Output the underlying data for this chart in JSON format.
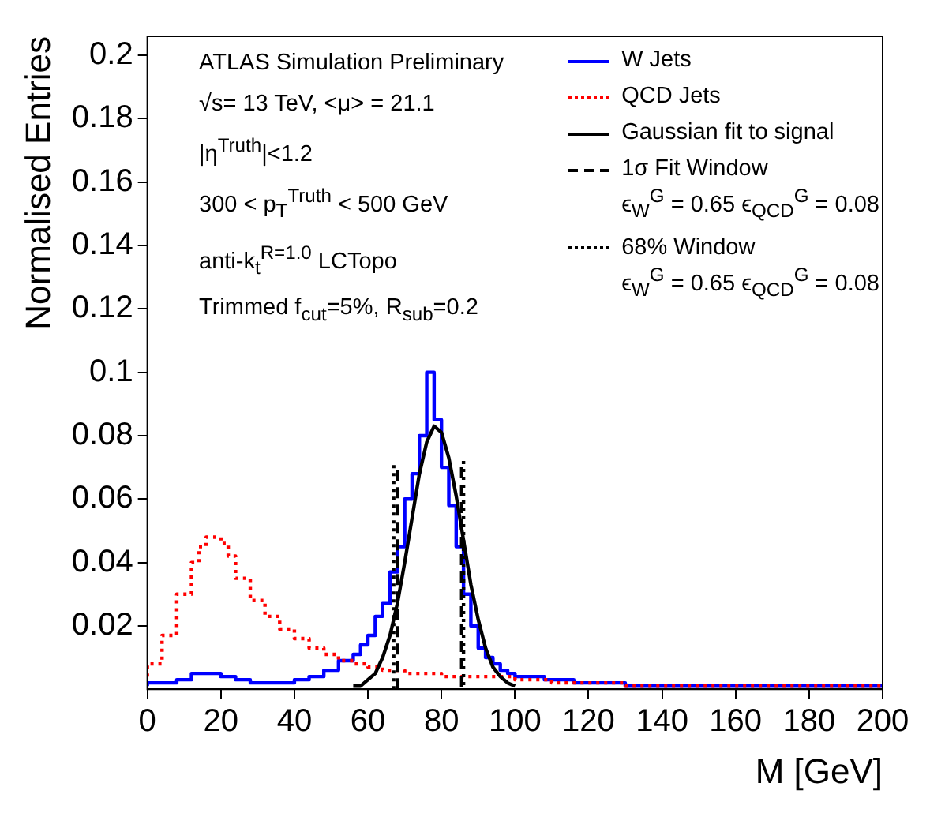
{
  "chart_data": {
    "type": "step",
    "xlabel": "M [GeV]",
    "ylabel": "Normalised Entries",
    "xlim": [
      0,
      200
    ],
    "ylim": [
      0,
      0.206
    ],
    "xticks": [
      0,
      20,
      40,
      60,
      80,
      100,
      120,
      140,
      160,
      180,
      200
    ],
    "yticks": [
      0.02,
      0.04,
      0.06,
      0.08,
      0.1,
      0.12,
      0.14,
      0.16,
      0.18,
      0.2
    ],
    "legend": "top right",
    "annotations": [
      "ATLAS Simulation Preliminary",
      "√s= 13 TeV, <μ> = 21.1",
      "|η$^{Truth}$|<1.2",
      "300 < p$_{T}$$^{Truth}$ < 500 GeV",
      "anti-k$_{t}$$^{R=1.0}$ LCTopo",
      "Trimmed f$_{cut}$=5%, R$_{sub}$=0.2",
      "ϵ$_{W}$$^{G}$ = 0.65 ϵ$_{QCD}$$^{G}$ = 0.08",
      "ϵ$_{W}$$^{G}$ = 0.65 ϵ$_{QCD}$$^{G}$ = 0.08"
    ],
    "series": [
      {
        "name": "W Jets",
        "color": "#0000ff",
        "x": [
          0,
          4,
          8,
          12,
          16,
          20,
          24,
          28,
          32,
          36,
          40,
          44,
          48,
          52,
          56,
          58,
          60,
          62,
          64,
          66,
          68,
          70,
          72,
          74,
          76,
          78,
          80,
          82,
          84,
          86,
          88,
          90,
          92,
          94,
          96,
          98,
          100,
          104,
          108,
          112,
          116,
          120,
          130,
          140,
          150,
          160,
          200
        ],
        "values": [
          0.001,
          0.002,
          0.002,
          0.003,
          0.005,
          0.005,
          0.004,
          0.003,
          0.002,
          0.002,
          0.002,
          0.003,
          0.004,
          0.006,
          0.009,
          0.011,
          0.014,
          0.017,
          0.023,
          0.027,
          0.037,
          0.045,
          0.06,
          0.068,
          0.08,
          0.1,
          0.085,
          0.07,
          0.058,
          0.045,
          0.03,
          0.02,
          0.013,
          0.01,
          0.008,
          0.006,
          0.005,
          0.004,
          0.004,
          0.003,
          0.003,
          0.002,
          0.002,
          0.001,
          0.001,
          0.001,
          0.001
        ]
      },
      {
        "name": "QCD Jets",
        "color": "#ff0000",
        "line_style": "dotted",
        "x": [
          0,
          4,
          8,
          12,
          14,
          16,
          20,
          22,
          24,
          28,
          32,
          36,
          40,
          44,
          48,
          52,
          56,
          60,
          64,
          70,
          80,
          90,
          100,
          110,
          120,
          130,
          140,
          160,
          200
        ],
        "values": [
          0.004,
          0.008,
          0.017,
          0.03,
          0.04,
          0.045,
          0.048,
          0.046,
          0.042,
          0.035,
          0.028,
          0.023,
          0.019,
          0.016,
          0.013,
          0.011,
          0.009,
          0.008,
          0.007,
          0.006,
          0.005,
          0.004,
          0.004,
          0.003,
          0.002,
          0.002,
          0.001,
          0.001,
          0.001
        ]
      },
      {
        "name": "Gaussian fit to signal",
        "type": "line",
        "color": "#000000",
        "x": [
          56,
          58,
          60,
          62,
          64,
          66,
          68,
          70,
          72,
          74,
          76,
          78,
          80,
          82,
          84,
          86,
          88,
          90,
          92,
          94,
          96,
          98,
          100
        ],
        "values": [
          0.001,
          0.001,
          0.003,
          0.005,
          0.01,
          0.017,
          0.027,
          0.04,
          0.054,
          0.068,
          0.078,
          0.083,
          0.081,
          0.073,
          0.061,
          0.047,
          0.033,
          0.022,
          0.013,
          0.007,
          0.004,
          0.002,
          0.001
        ]
      },
      {
        "name": "1σ Fit Window",
        "type": "line",
        "color": "#000000",
        "line_style": "dashed",
        "x": [
          68,
          68,
          null,
          85.5,
          85.5
        ],
        "values": [
          0,
          0.07,
          null,
          0.07,
          0
        ]
      },
      {
        "name": "68% Window",
        "type": "line",
        "color": "#000000",
        "line_style": "dotted",
        "x": [
          67,
          67,
          null,
          86,
          86
        ],
        "values": [
          0,
          0.072,
          null,
          0.072,
          0
        ]
      }
    ]
  }
}
